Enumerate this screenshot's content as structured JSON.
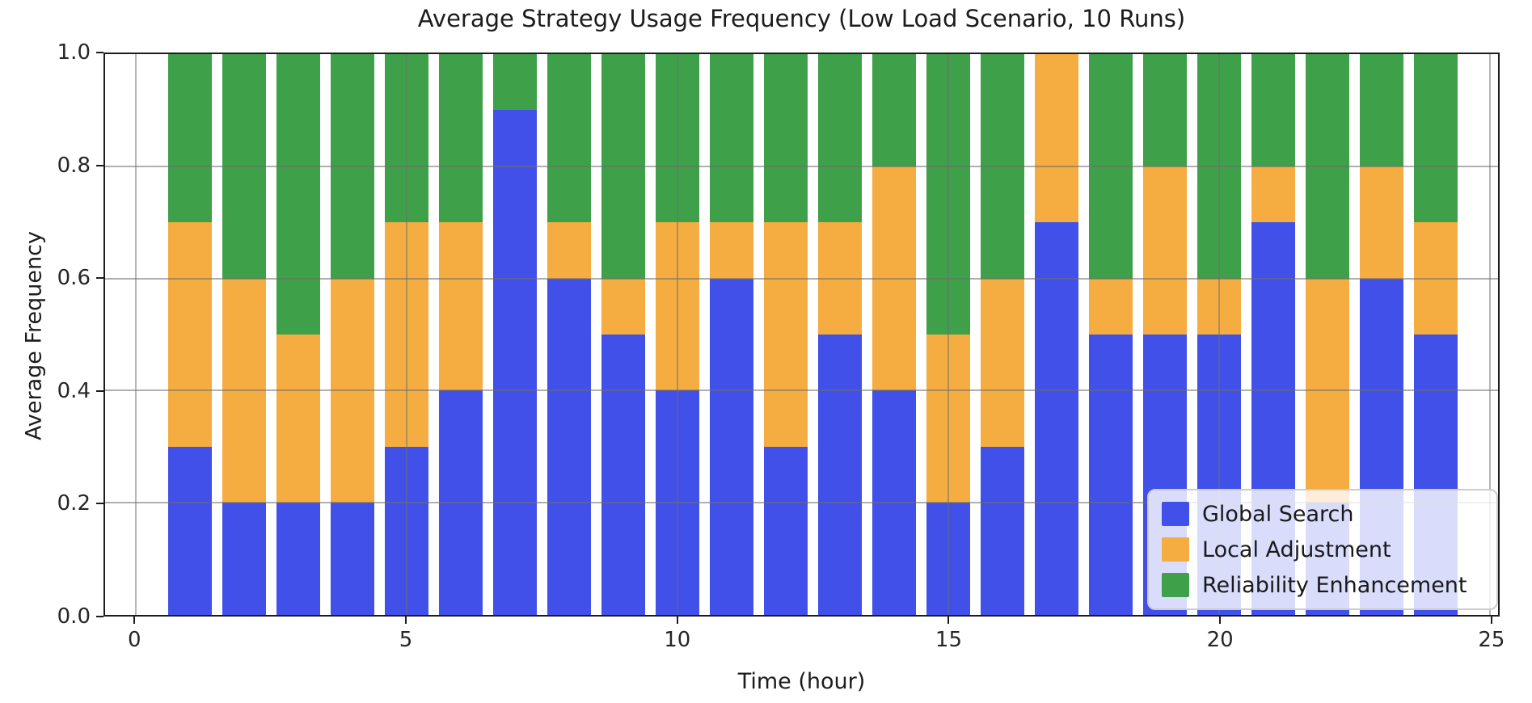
{
  "figure": {
    "title": "Average Strategy Usage Frequency (Low Load Scenario, 10 Runs)",
    "xlabel": "Time (hour)",
    "ylabel": "Average Frequency"
  },
  "axes": {
    "xticks": [
      0,
      5,
      10,
      15,
      20,
      25
    ],
    "yticks": [
      0.0,
      0.2,
      0.4,
      0.6,
      0.8,
      1.0
    ],
    "xlim": [
      -0.57,
      25.15
    ],
    "ylim": [
      0,
      1
    ]
  },
  "legend": {
    "items": [
      {
        "label": "Global Search",
        "color": "#4150e8"
      },
      {
        "label": "Local Adjustment",
        "color": "#f5ac40"
      },
      {
        "label": "Reliability Enhancement",
        "color": "#3fa04a"
      }
    ]
  },
  "chart_data": {
    "type": "bar",
    "stacked": true,
    "title": "Average Strategy Usage Frequency (Low Load Scenario, 10 Runs)",
    "xlabel": "Time (hour)",
    "ylabel": "Average Frequency",
    "categories": [
      1,
      2,
      3,
      4,
      5,
      6,
      7,
      8,
      9,
      10,
      11,
      12,
      13,
      14,
      15,
      16,
      17,
      18,
      19,
      20,
      21,
      22,
      23,
      24
    ],
    "bar_width": 0.8,
    "xlim": [
      -0.57,
      25.15
    ],
    "ylim": [
      0,
      1
    ],
    "grid": true,
    "legend_position": "lower right",
    "series": [
      {
        "name": "Global Search",
        "color": "#4150e8",
        "values": [
          0.3,
          0.2,
          0.2,
          0.2,
          0.3,
          0.4,
          0.9,
          0.6,
          0.5,
          0.4,
          0.6,
          0.3,
          0.5,
          0.4,
          0.2,
          0.3,
          0.7,
          0.5,
          0.5,
          0.5,
          0.7,
          0.2,
          0.6,
          0.5
        ]
      },
      {
        "name": "Local Adjustment",
        "color": "#f5ac40",
        "values": [
          0.4,
          0.4,
          0.3,
          0.4,
          0.4,
          0.3,
          0.0,
          0.1,
          0.1,
          0.3,
          0.1,
          0.4,
          0.2,
          0.4,
          0.3,
          0.3,
          0.3,
          0.1,
          0.3,
          0.1,
          0.1,
          0.4,
          0.2,
          0.2
        ]
      },
      {
        "name": "Reliability Enhancement",
        "color": "#3fa04a",
        "values": [
          0.3,
          0.4,
          0.5,
          0.4,
          0.3,
          0.3,
          0.1,
          0.3,
          0.4,
          0.3,
          0.3,
          0.3,
          0.3,
          0.2,
          0.5,
          0.4,
          0.0,
          0.4,
          0.2,
          0.4,
          0.2,
          0.4,
          0.2,
          0.3
        ]
      }
    ]
  }
}
